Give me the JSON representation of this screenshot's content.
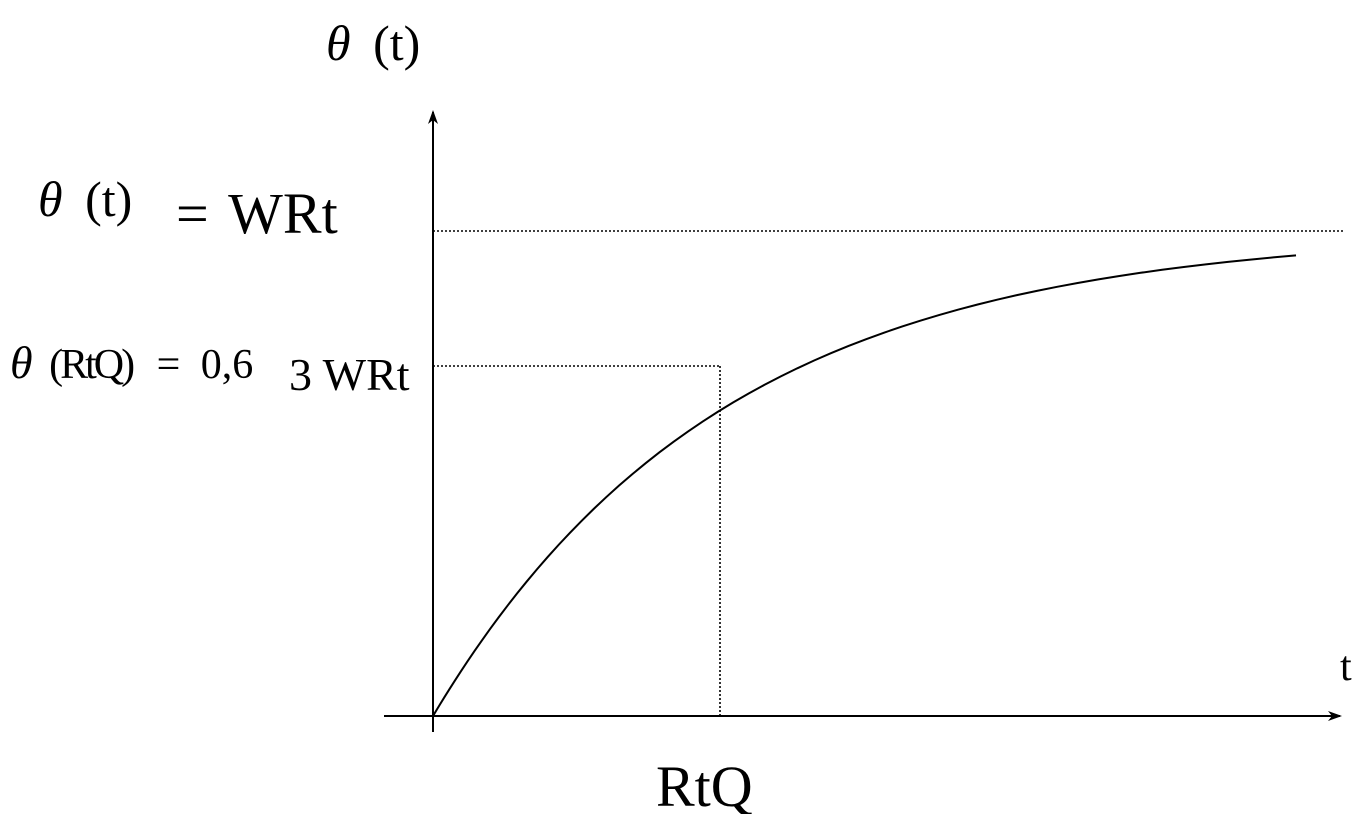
{
  "y_axis": {
    "symbol": "θ",
    "arg": "(t)"
  },
  "x_axis": {
    "label": "t"
  },
  "asymptote": {
    "symbol": "θ",
    "arg": "(t)",
    "equals": "=",
    "value": "WRt"
  },
  "tau_point": {
    "symbol": "θ",
    "arg": "(RtQ)",
    "equals": "=",
    "coef": "0,6",
    "coef_sub": "3",
    "value": "WRt",
    "x_label": "RtQ",
    "fraction_of_final": 0.63
  },
  "curve": {
    "shape": "exponential rise to final value",
    "samples": 60
  },
  "colors": {
    "line": "#000000",
    "background": "#ffffff"
  }
}
